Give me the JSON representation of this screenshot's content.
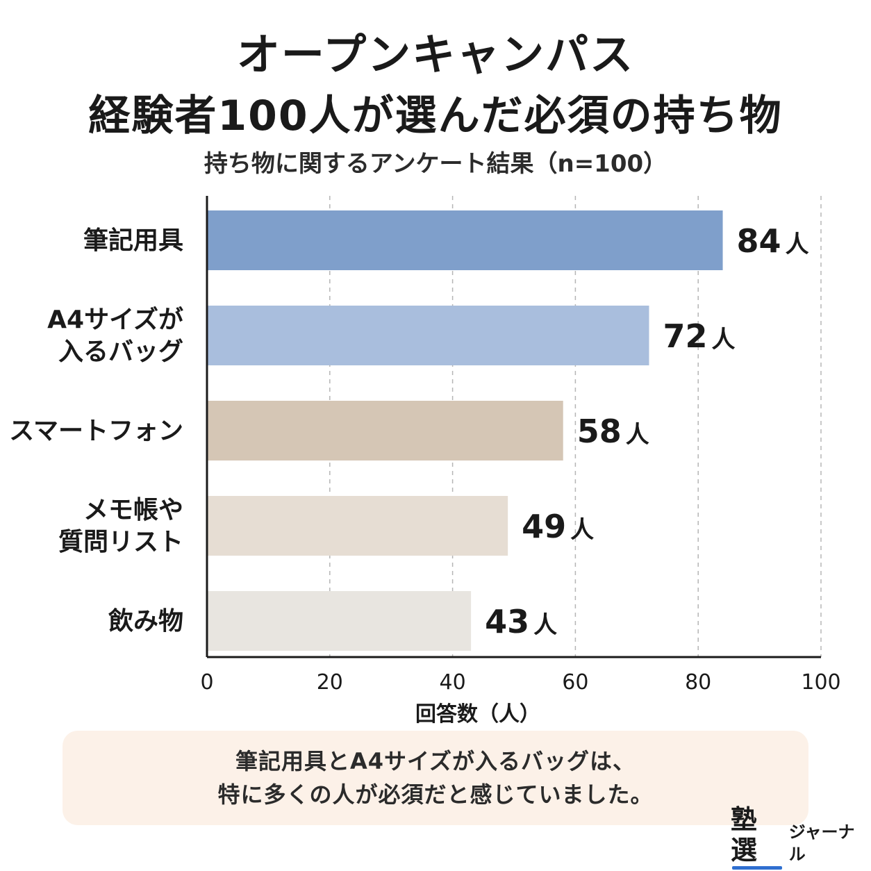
{
  "title_line1": "オープンキャンパス",
  "title_line2": "経験者100人が選んだ必須の持ち物",
  "subtitle": "持ち物に関するアンケート結果（n=100）",
  "chart_data": {
    "type": "bar",
    "orientation": "horizontal",
    "categories": [
      [
        "筆記用具"
      ],
      [
        "A4サイズが",
        "入るバッグ"
      ],
      [
        "スマートフォン"
      ],
      [
        "メモ帳や",
        "質問リスト"
      ],
      [
        "飲み物"
      ]
    ],
    "values": [
      84,
      72,
      58,
      49,
      43
    ],
    "value_labels": [
      "84",
      "72",
      "58",
      "49",
      "43"
    ],
    "value_unit": "人",
    "colors": [
      "#7f9fcb",
      "#a9bedd",
      "#d5c6b5",
      "#e6ddd3",
      "#e8e5e0"
    ],
    "xlabel": "回答数（人）",
    "xlim": [
      0,
      100
    ],
    "xticks": [
      "0",
      "20",
      "40",
      "60",
      "80",
      "100"
    ],
    "grid": "vertical-dashed"
  },
  "note": {
    "line1": "筆記用具とA4サイズが入るバッグは、",
    "line2": "特に多くの人が必須だと感じていました。"
  },
  "logo": {
    "main": "塾選",
    "sub": "ジャーナル"
  }
}
